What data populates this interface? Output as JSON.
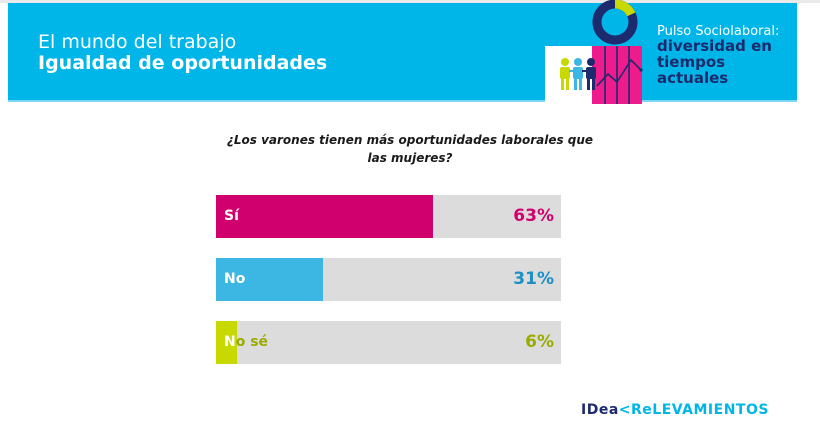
{
  "header": {
    "subtitle": "El mundo del trabajo",
    "title": "Igualdad de oportunidades",
    "badge_line1": "Pulso Sociolaboral:",
    "badge_line2": "diversidad en tiempos actuales",
    "illustration": "people-chart-donut-illustration"
  },
  "colors": {
    "header_bg": "#00b5e8",
    "navy": "#1d2a6e",
    "magenta": "#d1006f",
    "blue": "#3cb6e3",
    "lime": "#c8d900",
    "track": "#dcdcdc"
  },
  "chart_data": {
    "type": "bar",
    "orientation": "horizontal",
    "title": "¿Los varones tienen más oportunidades laborales que las mujeres?",
    "categories": [
      "Sí",
      "No",
      "No sé"
    ],
    "values": [
      63,
      31,
      6
    ],
    "value_labels": [
      "63%",
      "31%",
      "6%"
    ],
    "unit": "%",
    "xlim": [
      0,
      100
    ],
    "colors": [
      "#d1006f",
      "#3cb6e3",
      "#c8d900"
    ],
    "value_label_colors": [
      "#d1006f",
      "#1e8fc4",
      "#9aab00"
    ],
    "grid": false,
    "legend": "none"
  },
  "footer": {
    "logo_part1": "IDea",
    "logo_separator": "<",
    "logo_part2": "ReLEVAMIENTOS"
  }
}
